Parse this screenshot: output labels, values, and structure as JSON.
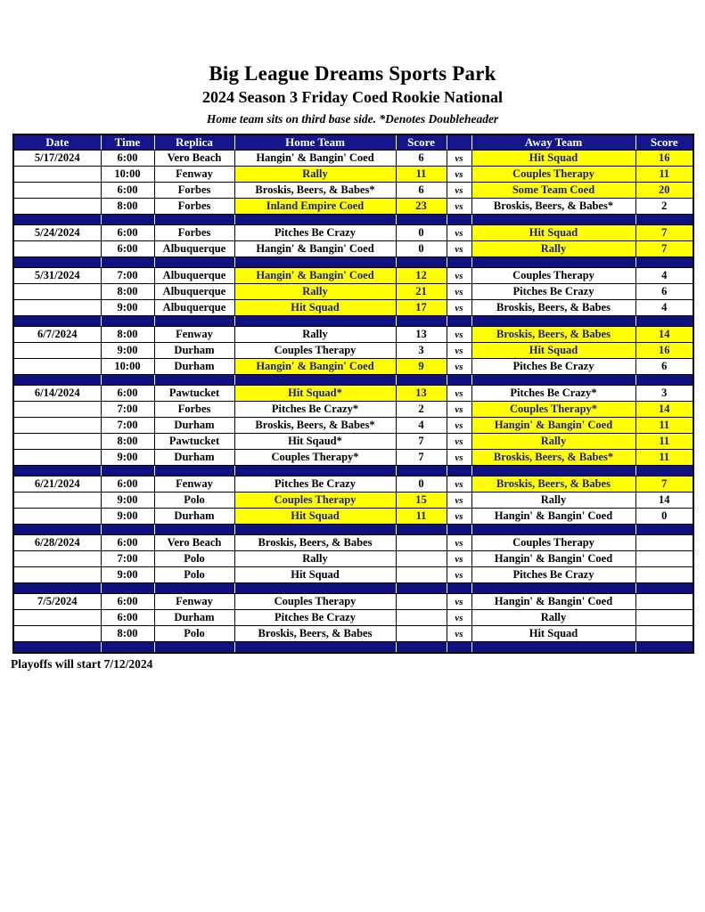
{
  "page": {
    "title": "Big League Dreams Sports Park",
    "subtitle": "2024 Season 3 Friday Coed Rookie National",
    "note": "Home team sits on third base side.  *Denotes Doubleheader",
    "footer": "Playoffs will start 7/12/2024"
  },
  "colors": {
    "header_navy": "#15158C",
    "separator_navy": "#10107E",
    "highlight_yellow": "#FFFF00",
    "highlight_text_blue": "#1B1B9E",
    "header_text": "#FFFFFF",
    "cell_text": "#000000"
  },
  "table": {
    "headers": [
      "Date",
      "Time",
      "Replica",
      "Home Team",
      "Score",
      "",
      "Away Team",
      "Score"
    ],
    "vs_label": "vs"
  },
  "blocks": [
    {
      "date": "5/17/2024",
      "games": [
        {
          "time": "6:00",
          "replica": "Vero Beach",
          "home": "Hangin' & Bangin' Coed",
          "home_score": "6",
          "home_win": false,
          "away": "Hit Squad",
          "away_score": "16",
          "away_win": true
        },
        {
          "time": "10:00",
          "replica": "Fenway",
          "home": "Rally",
          "home_score": "11",
          "home_win": true,
          "away": "Couples Therapy",
          "away_score": "11",
          "away_win": true
        },
        {
          "time": "6:00",
          "replica": "Forbes",
          "home": "Broskis, Beers, & Babes*",
          "home_score": "6",
          "home_win": false,
          "away": "Some Team Coed",
          "away_score": "20",
          "away_win": true
        },
        {
          "time": "8:00",
          "replica": "Forbes",
          "home": "Inland Empire Coed",
          "home_score": "23",
          "home_win": true,
          "away": "Broskis, Beers, & Babes*",
          "away_score": "2",
          "away_win": false
        }
      ]
    },
    {
      "date": "5/24/2024",
      "games": [
        {
          "time": "6:00",
          "replica": "Forbes",
          "home": "Pitches Be Crazy",
          "home_score": "0",
          "home_win": false,
          "away": "Hit Squad",
          "away_score": "7",
          "away_win": true
        },
        {
          "time": "6:00",
          "replica": "Albuquerque",
          "home": "Hangin' & Bangin' Coed",
          "home_score": "0",
          "home_win": false,
          "away": "Rally",
          "away_score": "7",
          "away_win": true
        }
      ]
    },
    {
      "date": "5/31/2024",
      "games": [
        {
          "time": "7:00",
          "replica": "Albuquerque",
          "home": "Hangin' & Bangin' Coed",
          "home_score": "12",
          "home_win": true,
          "away": "Couples Therapy",
          "away_score": "4",
          "away_win": false
        },
        {
          "time": "8:00",
          "replica": "Albuquerque",
          "home": "Rally",
          "home_score": "21",
          "home_win": true,
          "away": "Pitches Be Crazy",
          "away_score": "6",
          "away_win": false
        },
        {
          "time": "9:00",
          "replica": "Albuquerque",
          "home": "Hit Squad",
          "home_score": "17",
          "home_win": true,
          "away": "Broskis, Beers, & Babes",
          "away_score": "4",
          "away_win": false
        }
      ]
    },
    {
      "date": "6/7/2024",
      "games": [
        {
          "time": "8:00",
          "replica": "Fenway",
          "home": "Rally",
          "home_score": "13",
          "home_win": false,
          "away": "Broskis, Beers, & Babes",
          "away_score": "14",
          "away_win": true
        },
        {
          "time": "9:00",
          "replica": "Durham",
          "home": "Couples Therapy",
          "home_score": "3",
          "home_win": false,
          "away": "Hit Squad",
          "away_score": "16",
          "away_win": true
        },
        {
          "time": "10:00",
          "replica": "Durham",
          "home": "Hangin' & Bangin' Coed",
          "home_score": "9",
          "home_win": true,
          "away": "Pitches Be Crazy",
          "away_score": "6",
          "away_win": false
        }
      ]
    },
    {
      "date": "6/14/2024",
      "games": [
        {
          "time": "6:00",
          "replica": "Pawtucket",
          "home": "Hit Squad*",
          "home_score": "13",
          "home_win": true,
          "away": "Pitches Be Crazy*",
          "away_score": "3",
          "away_win": false
        },
        {
          "time": "7:00",
          "replica": "Forbes",
          "home": "Pitches Be Crazy*",
          "home_score": "2",
          "home_win": false,
          "away": "Couples Therapy*",
          "away_score": "14",
          "away_win": true
        },
        {
          "time": "7:00",
          "replica": "Durham",
          "home": "Broskis, Beers, & Babes*",
          "home_score": "4",
          "home_win": false,
          "away": "Hangin' & Bangin' Coed",
          "away_score": "11",
          "away_win": true
        },
        {
          "time": "8:00",
          "replica": "Pawtucket",
          "home": "Hit Sqaud*",
          "home_score": "7",
          "home_win": false,
          "away": "Rally",
          "away_score": "11",
          "away_win": true
        },
        {
          "time": "9:00",
          "replica": "Durham",
          "home": "Couples Therapy*",
          "home_score": "7",
          "home_win": false,
          "away": "Broskis, Beers, & Babes*",
          "away_score": "11",
          "away_win": true
        }
      ]
    },
    {
      "date": "6/21/2024",
      "games": [
        {
          "time": "6:00",
          "replica": "Fenway",
          "home": "Pitches Be Crazy",
          "home_score": "0",
          "home_win": false,
          "away": "Broskis, Beers, & Babes",
          "away_score": "7",
          "away_win": true
        },
        {
          "time": "9:00",
          "replica": "Polo",
          "home": "Couples Therapy",
          "home_score": "15",
          "home_win": true,
          "away": "Rally",
          "away_score": "14",
          "away_win": false
        },
        {
          "time": "9:00",
          "replica": "Durham",
          "home": "Hit Squad",
          "home_score": "11",
          "home_win": true,
          "away": "Hangin' & Bangin' Coed",
          "away_score": "0",
          "away_win": false
        }
      ]
    },
    {
      "date": "6/28/2024",
      "games": [
        {
          "time": "6:00",
          "replica": "Vero Beach",
          "home": "Broskis, Beers, & Babes",
          "home_score": "",
          "home_win": false,
          "away": "Couples Therapy",
          "away_score": "",
          "away_win": false
        },
        {
          "time": "7:00",
          "replica": "Polo",
          "home": "Rally",
          "home_score": "",
          "home_win": false,
          "away": "Hangin' & Bangin' Coed",
          "away_score": "",
          "away_win": false
        },
        {
          "time": "9:00",
          "replica": "Polo",
          "home": "Hit Squad",
          "home_score": "",
          "home_win": false,
          "away": "Pitches Be Crazy",
          "away_score": "",
          "away_win": false
        }
      ]
    },
    {
      "date": "7/5/2024",
      "games": [
        {
          "time": "6:00",
          "replica": "Fenway",
          "home": "Couples Therapy",
          "home_score": "",
          "home_win": false,
          "away": "Hangin' & Bangin' Coed",
          "away_score": "",
          "away_win": false
        },
        {
          "time": "6:00",
          "replica": "Durham",
          "home": "Pitches Be Crazy",
          "home_score": "",
          "home_win": false,
          "away": "Rally",
          "away_score": "",
          "away_win": false
        },
        {
          "time": "8:00",
          "replica": "Polo",
          "home": "Broskis, Beers, & Babes",
          "home_score": "",
          "home_win": false,
          "away": "Hit Squad",
          "away_score": "",
          "away_win": false
        }
      ]
    }
  ]
}
